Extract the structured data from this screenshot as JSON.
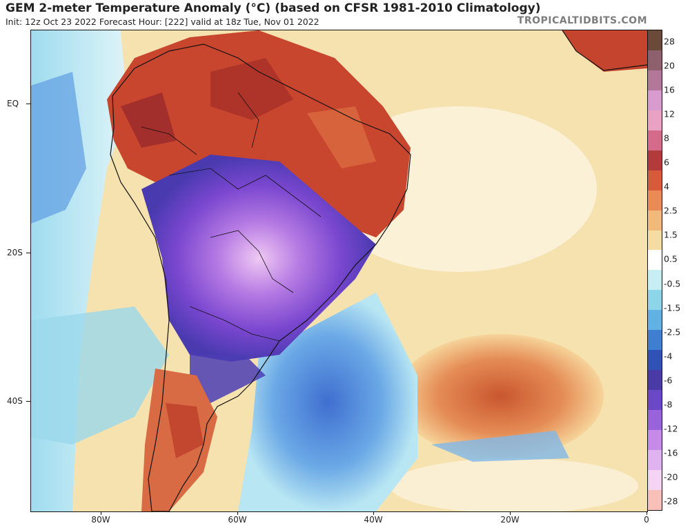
{
  "header": {
    "title": "GEM 2-meter Temperature Anomaly (°C) (based on CFSR 1981-2010 Climatology)",
    "subtitle": "Init: 12z Oct 23 2022   Forecast Hour: [222]   valid at 18z Tue, Nov 01 2022",
    "watermark": "TROPICALTIDBITS.COM"
  },
  "map": {
    "region": "South America and South Atlantic",
    "lat_labels": [
      "EQ",
      "20S",
      "40S"
    ],
    "lon_labels": [
      "80W",
      "60W",
      "40W",
      "20W",
      "0"
    ],
    "colors": {
      "ocean_warm": "#f4dfa8",
      "warm_anomaly": "#c9412c",
      "strong_warm": "#9c2a25",
      "cold_anomaly": "#4a63c8",
      "strong_cold": "#8e4fd6",
      "near_zero": "#ffffff",
      "cool": "#7fd3e6"
    }
  },
  "colorbar": {
    "labels": [
      "28",
      "20",
      "16",
      "12",
      "8",
      "6",
      "4",
      "2.5",
      "1.5",
      "0.5",
      "-0.5",
      "-1.5",
      "-2.5",
      "-4",
      "-6",
      "-8",
      "-12",
      "-16",
      "-20",
      "-28"
    ],
    "colors": [
      "#6b4a3a",
      "#8e5f6d",
      "#b3779a",
      "#d79bd0",
      "#e9a2c4",
      "#d66a8a",
      "#b23a3a",
      "#d75a3a",
      "#ec8a55",
      "#f3b97a",
      "#f7dca2",
      "#ffffff",
      "#c6eef3",
      "#8dd6ea",
      "#5fb2e3",
      "#3f7fd3",
      "#2f51b8",
      "#4a3aa8",
      "#6b48c8",
      "#9b62de",
      "#c68ae8",
      "#e0b3f0",
      "#f5d3f5",
      "#f8c0b8"
    ]
  }
}
